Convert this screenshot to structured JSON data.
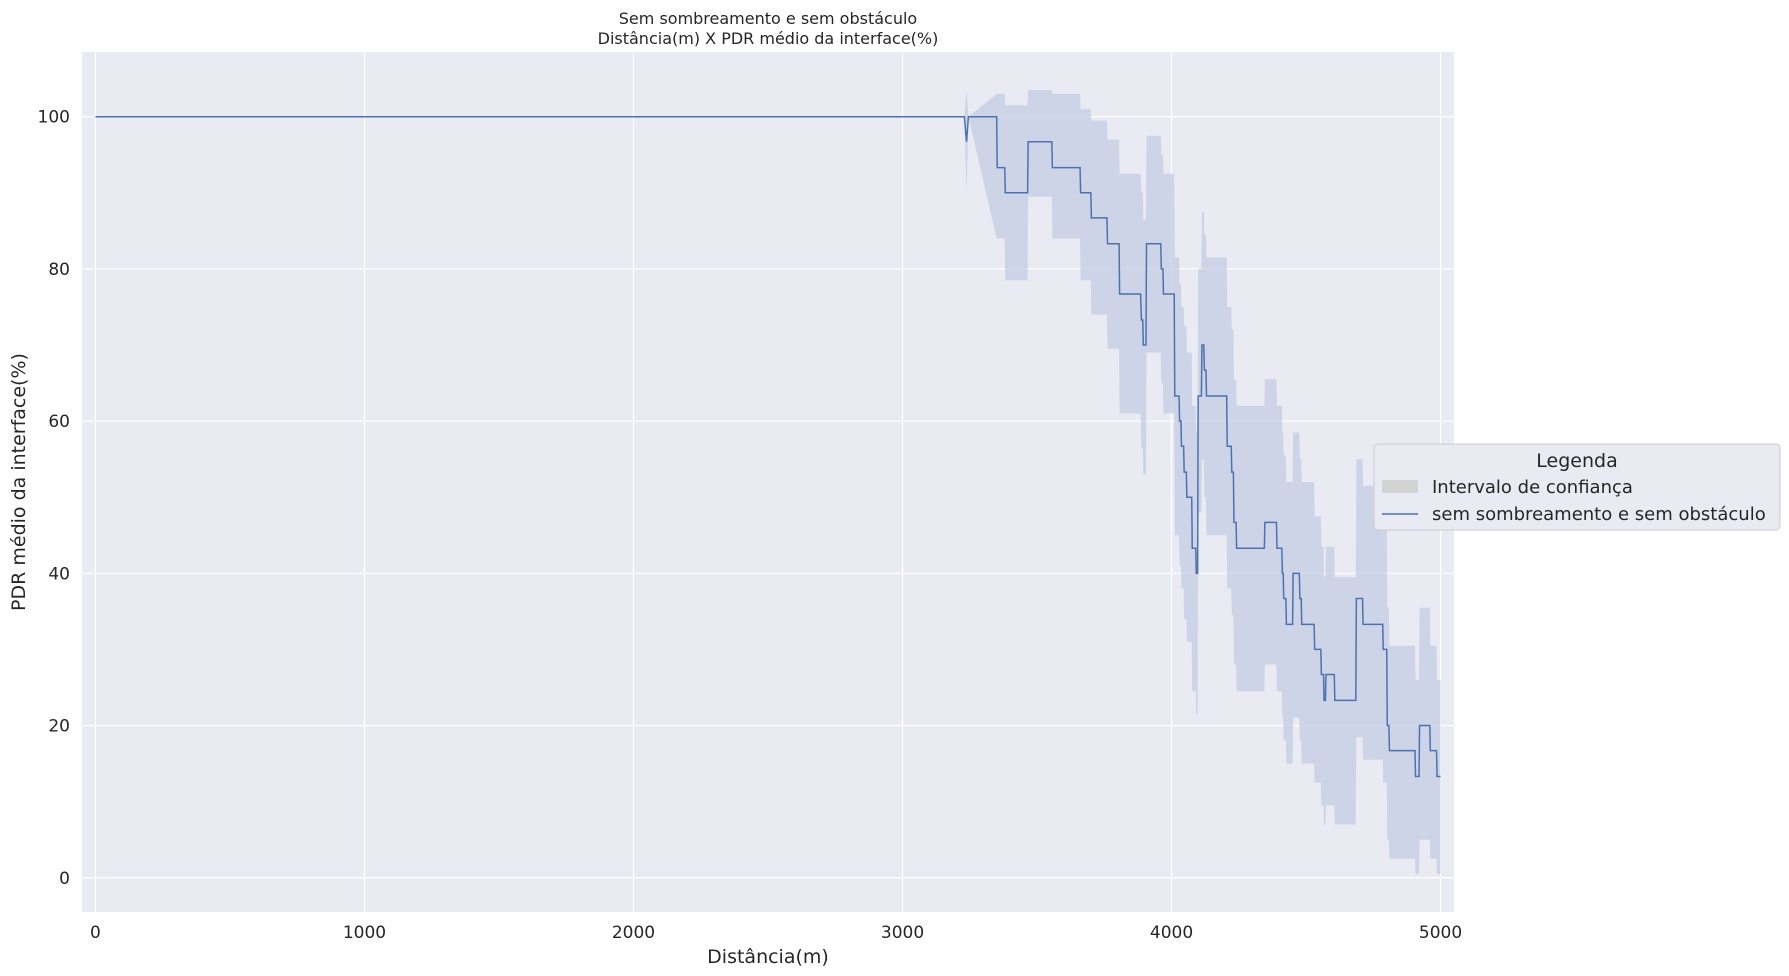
{
  "chart_data": {
    "type": "line",
    "title_lines": [
      "Sem sombreamento e sem obstáculo",
      "Distância(m) X PDR médio da interface(%)"
    ],
    "xlabel": "Distância(m)",
    "ylabel": "PDR médio da interface(%)",
    "xlim": [
      -50,
      5050
    ],
    "ylim": [
      -4.5,
      108.5
    ],
    "x_ticks": [
      0,
      1000,
      2000,
      3000,
      4000,
      5000
    ],
    "y_ticks": [
      0,
      20,
      40,
      60,
      80,
      100
    ],
    "grid": true,
    "legend": {
      "title": "Legenda",
      "placement": "right, outside plot",
      "entries": [
        "Intervalo de confiança",
        "sem sombreamento e sem obstáculo"
      ]
    },
    "colors": {
      "background": "#eaeaf2",
      "grid": "#ffffff",
      "line": "#4c72b0",
      "band": "#c3cce3",
      "legend_patch": "#d3d3d3"
    },
    "series": [
      {
        "name": "sem sombreamento e sem obstáculo",
        "points": [
          [
            0,
            100
          ],
          [
            3230,
            100
          ],
          [
            3238,
            96.7
          ],
          [
            3245,
            100
          ],
          [
            3350,
            100
          ],
          [
            3352,
            93.3
          ],
          [
            3380,
            93.3
          ],
          [
            3382,
            90
          ],
          [
            3465,
            90
          ],
          [
            3467,
            96.7
          ],
          [
            3555,
            96.7
          ],
          [
            3557,
            93.3
          ],
          [
            3660,
            93.3
          ],
          [
            3662,
            90
          ],
          [
            3700,
            90
          ],
          [
            3702,
            86.7
          ],
          [
            3760,
            86.7
          ],
          [
            3762,
            83.3
          ],
          [
            3805,
            83.3
          ],
          [
            3807,
            76.7
          ],
          [
            3885,
            76.7
          ],
          [
            3888,
            73.3
          ],
          [
            3893,
            73.3
          ],
          [
            3895,
            70
          ],
          [
            3905,
            70
          ],
          [
            3907,
            83.3
          ],
          [
            3960,
            83.3
          ],
          [
            3962,
            80
          ],
          [
            3968,
            80
          ],
          [
            3970,
            76.7
          ],
          [
            4010,
            76.7
          ],
          [
            4012,
            63.3
          ],
          [
            4028,
            63.3
          ],
          [
            4030,
            60
          ],
          [
            4035,
            60
          ],
          [
            4037,
            56.7
          ],
          [
            4045,
            56.7
          ],
          [
            4047,
            53.3
          ],
          [
            4055,
            53.3
          ],
          [
            4057,
            50
          ],
          [
            4075,
            50
          ],
          [
            4077,
            43.3
          ],
          [
            4090,
            43.3
          ],
          [
            4092,
            40
          ],
          [
            4097,
            40
          ],
          [
            4099,
            63.3
          ],
          [
            4111,
            63.3
          ],
          [
            4113,
            70
          ],
          [
            4120,
            70
          ],
          [
            4122,
            66.7
          ],
          [
            4128,
            66.7
          ],
          [
            4130,
            63.3
          ],
          [
            4205,
            63.3
          ],
          [
            4207,
            56.7
          ],
          [
            4222,
            56.7
          ],
          [
            4224,
            53.3
          ],
          [
            4230,
            53.3
          ],
          [
            4232,
            46.7
          ],
          [
            4240,
            46.7
          ],
          [
            4242,
            43.3
          ],
          [
            4345,
            43.3
          ],
          [
            4347,
            46.7
          ],
          [
            4390,
            46.7
          ],
          [
            4392,
            43.3
          ],
          [
            4410,
            43.3
          ],
          [
            4412,
            40
          ],
          [
            4415,
            40
          ],
          [
            4417,
            36.7
          ],
          [
            4425,
            36.7
          ],
          [
            4427,
            33.3
          ],
          [
            4450,
            33.3
          ],
          [
            4452,
            40
          ],
          [
            4475,
            40
          ],
          [
            4477,
            36.7
          ],
          [
            4482,
            36.7
          ],
          [
            4484,
            33.3
          ],
          [
            4530,
            33.3
          ],
          [
            4532,
            30
          ],
          [
            4555,
            30
          ],
          [
            4557,
            26.7
          ],
          [
            4565,
            26.7
          ],
          [
            4567,
            23.3
          ],
          [
            4572,
            23.3
          ],
          [
            4574,
            26.7
          ],
          [
            4605,
            26.7
          ],
          [
            4607,
            23.3
          ],
          [
            4685,
            23.3
          ],
          [
            4687,
            36.7
          ],
          [
            4710,
            36.7
          ],
          [
            4712,
            33.3
          ],
          [
            4785,
            33.3
          ],
          [
            4787,
            30
          ],
          [
            4800,
            30
          ],
          [
            4802,
            20
          ],
          [
            4808,
            20
          ],
          [
            4810,
            16.7
          ],
          [
            4905,
            16.7
          ],
          [
            4907,
            13.3
          ],
          [
            4920,
            13.3
          ],
          [
            4922,
            20
          ],
          [
            4960,
            20
          ],
          [
            4962,
            16.7
          ],
          [
            4985,
            16.7
          ],
          [
            4987,
            13.3
          ],
          [
            5000,
            13.3
          ]
        ]
      }
    ],
    "confidence_band": [
      [
        0,
        100,
        100
      ],
      [
        3230,
        100,
        100
      ],
      [
        3238,
        90,
        103.5
      ],
      [
        3245,
        100,
        100
      ],
      [
        3350,
        84,
        103
      ],
      [
        3380,
        84,
        103
      ],
      [
        3382,
        78.5,
        101.5
      ],
      [
        3465,
        78.5,
        101.5
      ],
      [
        3467,
        89.5,
        103.5
      ],
      [
        3555,
        89.5,
        103.5
      ],
      [
        3557,
        84,
        103
      ],
      [
        3660,
        84,
        103
      ],
      [
        3662,
        78.5,
        101
      ],
      [
        3700,
        78.5,
        101
      ],
      [
        3702,
        74,
        99.5
      ],
      [
        3760,
        74,
        99.5
      ],
      [
        3762,
        69.5,
        97
      ],
      [
        3805,
        69.5,
        97
      ],
      [
        3807,
        61,
        92.5
      ],
      [
        3885,
        61,
        92.5
      ],
      [
        3888,
        56.5,
        90
      ],
      [
        3893,
        56.5,
        90
      ],
      [
        3895,
        53,
        86.5
      ],
      [
        3905,
        53,
        86.5
      ],
      [
        3907,
        69,
        97.5
      ],
      [
        3960,
        69,
        97.5
      ],
      [
        3962,
        65,
        95
      ],
      [
        3968,
        65,
        95
      ],
      [
        3970,
        61,
        92.5
      ],
      [
        4010,
        61,
        92.5
      ],
      [
        4012,
        45,
        81.5
      ],
      [
        4028,
        45,
        81.5
      ],
      [
        4030,
        41,
        78
      ],
      [
        4035,
        41,
        78
      ],
      [
        4037,
        38,
        75
      ],
      [
        4045,
        38,
        75
      ],
      [
        4047,
        34,
        72.5
      ],
      [
        4055,
        34,
        72.5
      ],
      [
        4057,
        31,
        69
      ],
      [
        4075,
        31,
        69
      ],
      [
        4077,
        24.5,
        62
      ],
      [
        4090,
        24.5,
        62
      ],
      [
        4092,
        21.5,
        58.5
      ],
      [
        4097,
        21.5,
        58.5
      ],
      [
        4099,
        48,
        80
      ],
      [
        4111,
        48,
        80
      ],
      [
        4113,
        55,
        87.5
      ],
      [
        4120,
        55,
        87.5
      ],
      [
        4122,
        50,
        84.5
      ],
      [
        4128,
        50,
        84.5
      ],
      [
        4130,
        45,
        81.5
      ],
      [
        4205,
        45,
        81.5
      ],
      [
        4207,
        38,
        75
      ],
      [
        4222,
        38,
        75
      ],
      [
        4224,
        34.5,
        72
      ],
      [
        4230,
        34.5,
        72
      ],
      [
        4232,
        28,
        65.5
      ],
      [
        4240,
        28,
        65.5
      ],
      [
        4242,
        24.5,
        62
      ],
      [
        4345,
        24.5,
        62
      ],
      [
        4347,
        28,
        65.5
      ],
      [
        4390,
        28,
        65.5
      ],
      [
        4392,
        24.5,
        62
      ],
      [
        4410,
        24.5,
        62
      ],
      [
        4412,
        21,
        58.5
      ],
      [
        4415,
        21,
        58.5
      ],
      [
        4417,
        18,
        55.5
      ],
      [
        4425,
        18,
        55.5
      ],
      [
        4427,
        15,
        52
      ],
      [
        4450,
        15,
        52
      ],
      [
        4452,
        21,
        58.5
      ],
      [
        4475,
        21,
        58.5
      ],
      [
        4477,
        18,
        55
      ],
      [
        4482,
        18,
        55
      ],
      [
        4484,
        15,
        52
      ],
      [
        4530,
        15,
        52
      ],
      [
        4532,
        12.5,
        47.5
      ],
      [
        4555,
        12.5,
        47.5
      ],
      [
        4557,
        9.5,
        43.5
      ],
      [
        4565,
        9.5,
        43.5
      ],
      [
        4567,
        7,
        39.5
      ],
      [
        4572,
        7,
        39.5
      ],
      [
        4574,
        9.5,
        43.5
      ],
      [
        4605,
        9.5,
        43.5
      ],
      [
        4607,
        7,
        39.5
      ],
      [
        4685,
        7,
        39.5
      ],
      [
        4687,
        18.5,
        55
      ],
      [
        4710,
        18.5,
        55
      ],
      [
        4712,
        15.5,
        51.5
      ],
      [
        4785,
        15.5,
        51.5
      ],
      [
        4787,
        12.5,
        47.5
      ],
      [
        4800,
        12.5,
        47.5
      ],
      [
        4802,
        5,
        35.5
      ],
      [
        4808,
        5,
        35.5
      ],
      [
        4810,
        2.5,
        30.5
      ],
      [
        4905,
        2.5,
        30.5
      ],
      [
        4907,
        0.5,
        26
      ],
      [
        4920,
        0.5,
        26
      ],
      [
        4922,
        5,
        35.5
      ],
      [
        4960,
        5,
        35.5
      ],
      [
        4962,
        2.5,
        30.5
      ],
      [
        4985,
        2.5,
        30.5
      ],
      [
        4987,
        0.5,
        26
      ],
      [
        5000,
        0.5,
        26
      ]
    ]
  }
}
